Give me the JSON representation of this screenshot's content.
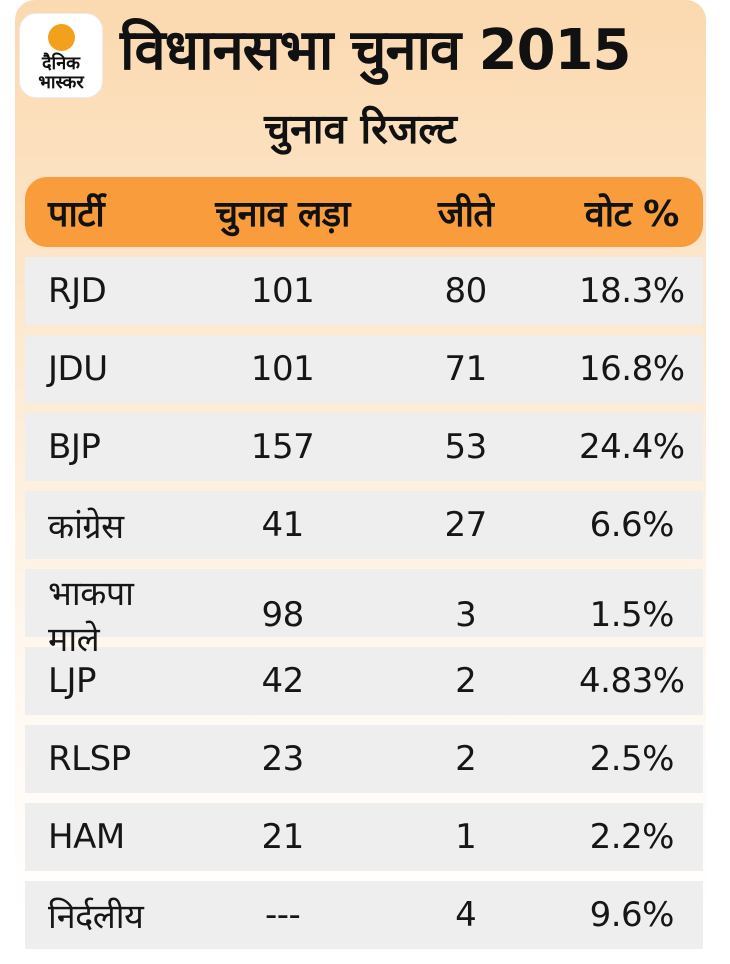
{
  "brand": {
    "logo_line1": "दैनिक",
    "logo_line2": "भास्कर",
    "dot_color": "#f3a11c"
  },
  "header": {
    "title": "विधानसभा चुनाव 2015",
    "subtitle": "चुनाव रिजल्ट"
  },
  "colors": {
    "card_gradient_top": "#fbd9b0",
    "card_gradient_bottom": "#ffffff",
    "table_header_bg": "#f89c3c",
    "row_bg": "#eeeeee",
    "text": "#111111"
  },
  "table": {
    "columns": [
      "पार्टी",
      "चुनाव लड़ा",
      "जीते",
      "वोट %"
    ],
    "rows": [
      {
        "party": "RJD",
        "contested": "101",
        "won": "80",
        "vote_pct": "18.3%"
      },
      {
        "party": "JDU",
        "contested": "101",
        "won": "71",
        "vote_pct": "16.8%"
      },
      {
        "party": "BJP",
        "contested": "157",
        "won": "53",
        "vote_pct": "24.4%"
      },
      {
        "party": "कांग्रेस",
        "contested": "41",
        "won": "27",
        "vote_pct": "6.6%"
      },
      {
        "party": "भाकपा माले",
        "contested": "98",
        "won": "3",
        "vote_pct": "1.5%"
      },
      {
        "party": "LJP",
        "contested": "42",
        "won": "2",
        "vote_pct": "4.83%"
      },
      {
        "party": "RLSP",
        "contested": "23",
        "won": "2",
        "vote_pct": "2.5%"
      },
      {
        "party": "HAM",
        "contested": "21",
        "won": "1",
        "vote_pct": "2.2%"
      },
      {
        "party": "निर्दलीय",
        "contested": "---",
        "won": "4",
        "vote_pct": "9.6%"
      }
    ]
  },
  "chart_data": {
    "type": "table",
    "title": "विधानसभा चुनाव 2015",
    "subtitle": "चुनाव रिजल्ट",
    "columns": [
      "पार्टी",
      "चुनाव लड़ा",
      "जीते",
      "वोट %"
    ],
    "categories": [
      "RJD",
      "JDU",
      "BJP",
      "कांग्रेस",
      "भाकपा माले",
      "LJP",
      "RLSP",
      "HAM",
      "निर्दलीय"
    ],
    "series": [
      {
        "name": "चुनाव लड़ा",
        "values": [
          101,
          101,
          157,
          41,
          98,
          42,
          23,
          21,
          null
        ]
      },
      {
        "name": "जीते",
        "values": [
          80,
          71,
          53,
          27,
          3,
          2,
          2,
          1,
          4
        ]
      },
      {
        "name": "वोट %",
        "values": [
          18.3,
          16.8,
          24.4,
          6.6,
          1.5,
          4.83,
          2.5,
          2.2,
          9.6
        ]
      }
    ]
  }
}
